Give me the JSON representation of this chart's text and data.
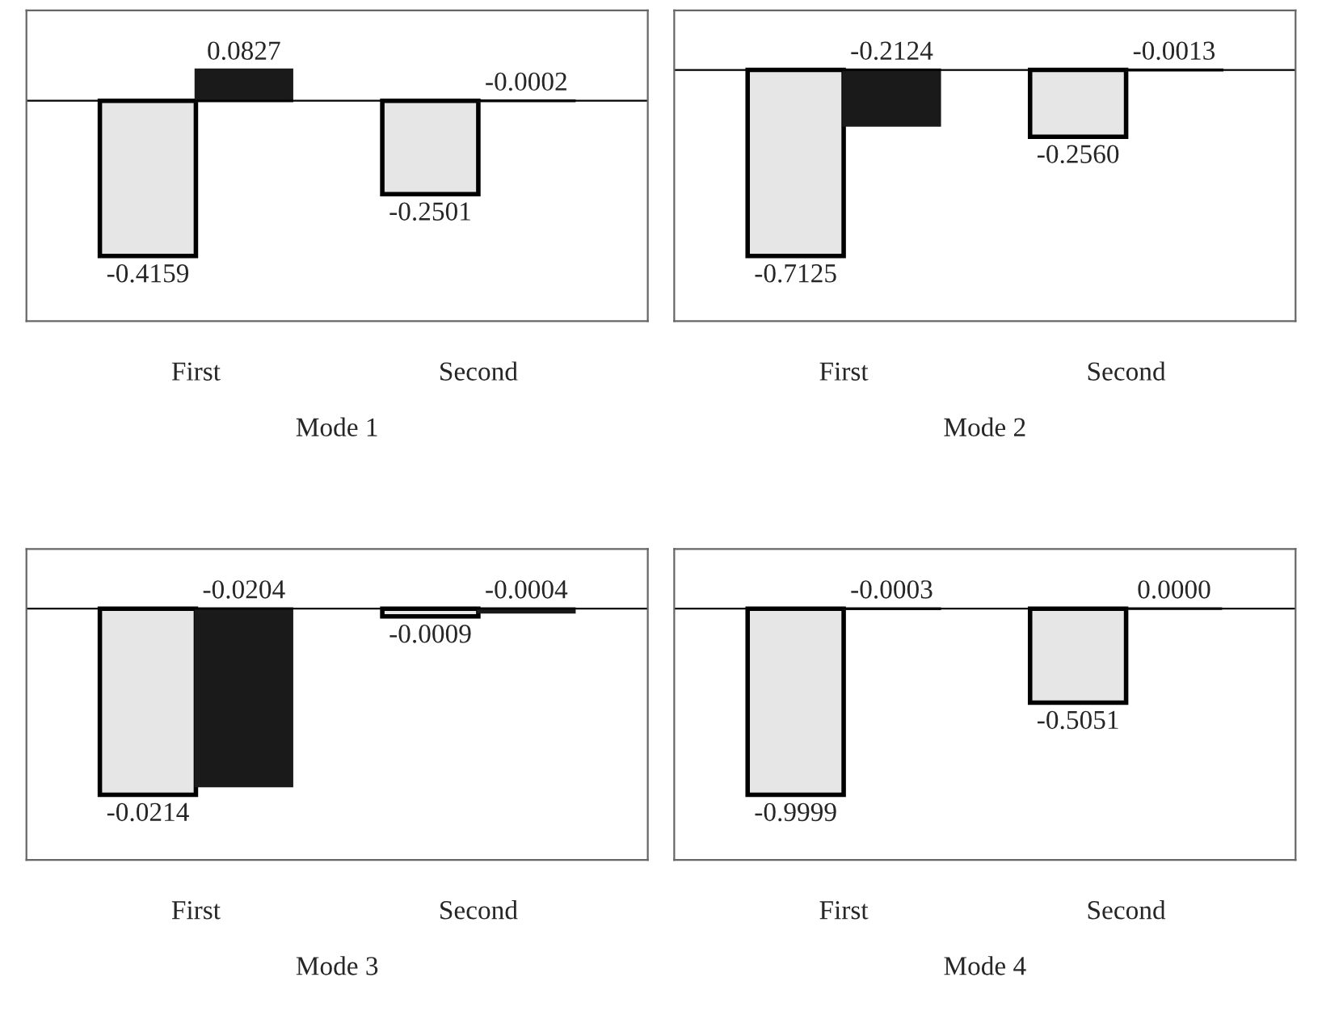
{
  "chart_data": [
    {
      "type": "bar",
      "xlabel": "Mode 1",
      "categories": [
        "First",
        "Second"
      ],
      "series": [
        {
          "color": "#e6e6e6",
          "values": [
            -0.4159,
            -0.2501
          ],
          "value_labels": [
            "-0.4159",
            "-0.2501"
          ]
        },
        {
          "color": "#1a1a1a",
          "values": [
            0.0827,
            -0.0002
          ],
          "value_labels": [
            "0.0827",
            "-0.0002"
          ]
        }
      ]
    },
    {
      "type": "bar",
      "xlabel": "Mode 2",
      "categories": [
        "First",
        "Second"
      ],
      "series": [
        {
          "color": "#e6e6e6",
          "values": [
            -0.7125,
            -0.256
          ],
          "value_labels": [
            "-0.7125",
            "-0.2560"
          ]
        },
        {
          "color": "#1a1a1a",
          "values": [
            -0.2124,
            -0.0013
          ],
          "value_labels": [
            "-0.2124",
            "-0.0013"
          ]
        }
      ]
    },
    {
      "type": "bar",
      "xlabel": "Mode 3",
      "categories": [
        "First",
        "Second"
      ],
      "series": [
        {
          "color": "#e6e6e6",
          "values": [
            -0.0214,
            -0.0009
          ],
          "value_labels": [
            "-0.0214",
            "-0.0009"
          ]
        },
        {
          "color": "#1a1a1a",
          "values": [
            -0.0204,
            -0.0004
          ],
          "value_labels": [
            "-0.0204",
            "-0.0004"
          ]
        }
      ]
    },
    {
      "type": "bar",
      "xlabel": "Mode 4",
      "categories": [
        "First",
        "Second"
      ],
      "series": [
        {
          "color": "#e6e6e6",
          "values": [
            -0.9999,
            -0.5051
          ],
          "value_labels": [
            "-0.9999",
            "-0.5051"
          ]
        },
        {
          "color": "#1a1a1a",
          "values": [
            -0.0003,
            0.0
          ],
          "value_labels": [
            "-0.0003",
            "0.0000"
          ]
        }
      ]
    }
  ]
}
